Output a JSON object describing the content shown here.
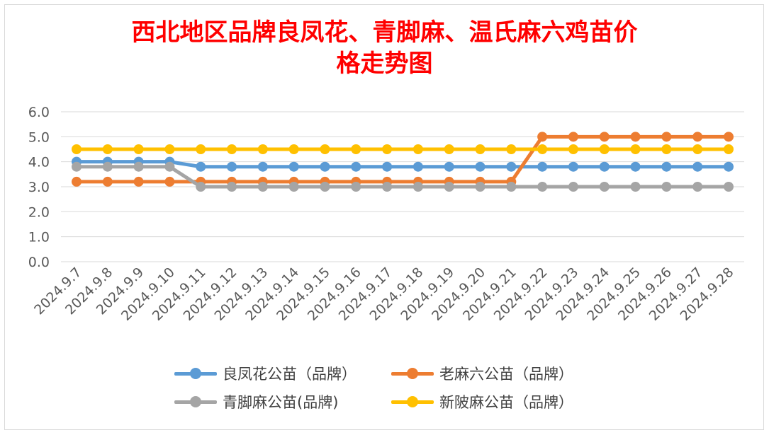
{
  "chart_data": {
    "type": "line",
    "title_line1": "西北地区品牌良凤花、青脚麻、温氏麻六鸡苗价",
    "title_line2": "格走势图",
    "categories": [
      "2024.9.7",
      "2024.9.8",
      "2024.9.9",
      "2024.9.10",
      "2024.9.11",
      "2024.9.12",
      "2024.9.13",
      "2024.9.14",
      "2024.9.15",
      "2024.9.16",
      "2024.9.17",
      "2024.9.18",
      "2024.9.19",
      "2024.9.20",
      "2024.9.21",
      "2024.9.22",
      "2024.9.23",
      "2024.9.24",
      "2024.9.25",
      "2024.9.26",
      "2024.9.27",
      "2024.9.28"
    ],
    "y_ticks": [
      "0.0",
      "1.0",
      "2.0",
      "3.0",
      "4.0",
      "5.0",
      "6.0"
    ],
    "ylim": [
      0,
      6
    ],
    "grid": true,
    "legend_position": "bottom",
    "series": [
      {
        "name": "良凤花公苗（品牌）",
        "color": "#5b9bd5",
        "values": [
          4.0,
          4.0,
          4.0,
          4.0,
          3.8,
          3.8,
          3.8,
          3.8,
          3.8,
          3.8,
          3.8,
          3.8,
          3.8,
          3.8,
          3.8,
          3.8,
          3.8,
          3.8,
          3.8,
          3.8,
          3.8,
          3.8
        ]
      },
      {
        "name": "老麻六公苗（品牌）",
        "color": "#ed7d31",
        "values": [
          3.2,
          3.2,
          3.2,
          3.2,
          3.2,
          3.2,
          3.2,
          3.2,
          3.2,
          3.2,
          3.2,
          3.2,
          3.2,
          3.2,
          3.2,
          5.0,
          5.0,
          5.0,
          5.0,
          5.0,
          5.0,
          5.0
        ]
      },
      {
        "name": "青脚麻公苗(品牌)",
        "color": "#a5a5a5",
        "values": [
          3.8,
          3.8,
          3.8,
          3.8,
          3.0,
          3.0,
          3.0,
          3.0,
          3.0,
          3.0,
          3.0,
          3.0,
          3.0,
          3.0,
          3.0,
          3.0,
          3.0,
          3.0,
          3.0,
          3.0,
          3.0,
          3.0
        ]
      },
      {
        "name": "新陂麻公苗（品牌）",
        "color": "#ffc000",
        "values": [
          4.5,
          4.5,
          4.5,
          4.5,
          4.5,
          4.5,
          4.5,
          4.5,
          4.5,
          4.5,
          4.5,
          4.5,
          4.5,
          4.5,
          4.5,
          4.5,
          4.5,
          4.5,
          4.5,
          4.5,
          4.5,
          4.5
        ]
      }
    ]
  }
}
